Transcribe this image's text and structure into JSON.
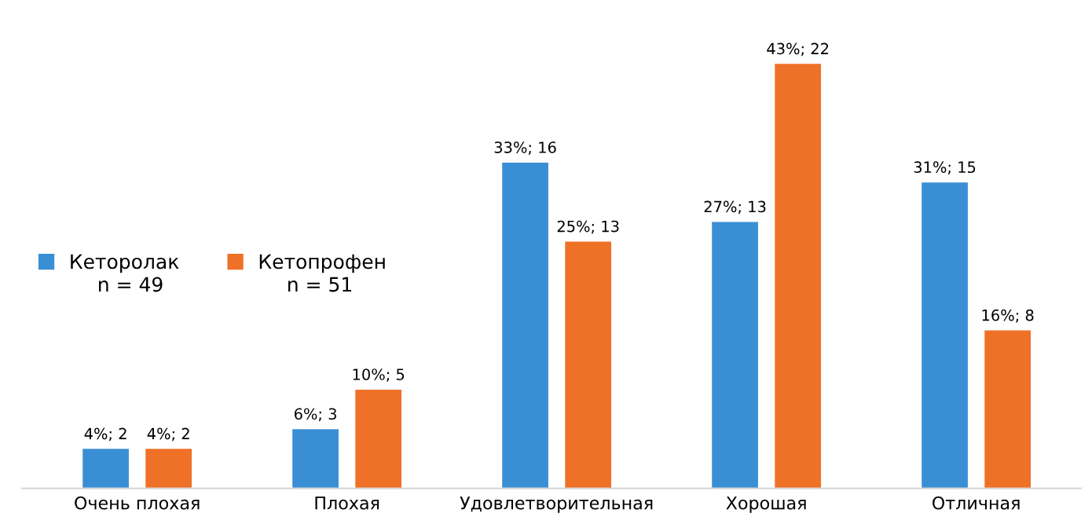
{
  "chart_data": {
    "type": "bar",
    "categories": [
      "Очень плохая",
      "Плохая",
      "Удовлетворительная",
      "Хорошая",
      "Отличная"
    ],
    "series": [
      {
        "name": "Кеторолак",
        "color": "#3a8fd4",
        "values": [
          4,
          6,
          33,
          27,
          31
        ],
        "value_labels": [
          "4%; 2",
          "6%; 3",
          "33%; 16",
          "27%; 13",
          "31%; 15"
        ]
      },
      {
        "name": "Кетопрофен",
        "color": "#ee7127",
        "values": [
          4,
          10,
          25,
          43,
          16
        ],
        "value_labels": [
          "4%; 2",
          "10%; 5",
          "25%; 13",
          "43%; 22",
          "16%; 8"
        ]
      }
    ],
    "legend": "left",
    "annotations": [
      "n = 49",
      "n = 51"
    ]
  }
}
